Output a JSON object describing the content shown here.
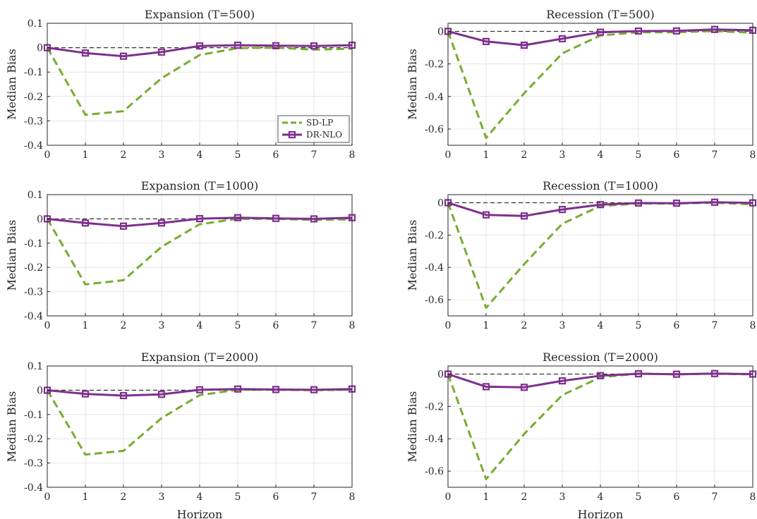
{
  "figure": {
    "xlabel": "Horizon",
    "ylabel": "Median Bias",
    "colors": {
      "sdlp": "#77AC30",
      "drnlo": "#7E2F8E",
      "zero": "#333333",
      "grid": "#e6e6e6",
      "axis": "#262626"
    }
  },
  "legend": {
    "location": "south-east (top-left panel)",
    "entries": [
      "SD-LP",
      "DR-NLO"
    ]
  },
  "chart_data": [
    {
      "type": "line",
      "title": "Expansion (T=500)",
      "xlabel": "",
      "ylabel": "Median Bias",
      "x": [
        0,
        1,
        2,
        3,
        4,
        5,
        6,
        7,
        8
      ],
      "xlim": [
        0,
        8
      ],
      "ylim": [
        -0.4,
        0.1
      ],
      "yticks": [
        -0.4,
        -0.3,
        -0.2,
        -0.1,
        0,
        0.1
      ],
      "yticklabels": [
        "-0.4",
        "-0.3",
        "-0.2",
        "-0.1",
        "0",
        "0.1"
      ],
      "grid": true,
      "legend": "inside south-east",
      "series": [
        {
          "name": "SD-LP",
          "style": "dashed",
          "values": [
            0,
            -0.275,
            -0.26,
            -0.125,
            -0.03,
            -0.002,
            0.0,
            -0.008,
            -0.004
          ]
        },
        {
          "name": "DR-NLO",
          "style": "solid-square",
          "values": [
            0,
            -0.022,
            -0.035,
            -0.018,
            0.007,
            0.01,
            0.008,
            0.007,
            0.01
          ]
        }
      ]
    },
    {
      "type": "line",
      "title": "Recession (T=500)",
      "xlabel": "",
      "ylabel": "Median Bias",
      "x": [
        0,
        1,
        2,
        3,
        4,
        5,
        6,
        7,
        8
      ],
      "xlim": [
        0,
        8
      ],
      "ylim": [
        -0.7,
        0.05
      ],
      "yticks": [
        -0.6,
        -0.4,
        -0.2,
        0
      ],
      "yticklabels": [
        "-0.6",
        "-0.4",
        "-0.2",
        "0"
      ],
      "grid": true,
      "series": [
        {
          "name": "SD-LP",
          "style": "dashed",
          "values": [
            0,
            -0.655,
            -0.38,
            -0.135,
            -0.025,
            -0.005,
            -0.005,
            0.002,
            -0.008
          ]
        },
        {
          "name": "DR-NLO",
          "style": "solid-square",
          "values": [
            0,
            -0.062,
            -0.085,
            -0.045,
            -0.005,
            0.002,
            0.003,
            0.012,
            0.007
          ]
        }
      ]
    },
    {
      "type": "line",
      "title": "Expansion (T=1000)",
      "xlabel": "",
      "ylabel": "Median Bias",
      "x": [
        0,
        1,
        2,
        3,
        4,
        5,
        6,
        7,
        8
      ],
      "xlim": [
        0,
        8
      ],
      "ylim": [
        -0.4,
        0.1
      ],
      "yticks": [
        -0.4,
        -0.3,
        -0.2,
        -0.1,
        0,
        0.1
      ],
      "yticklabels": [
        "-0.4",
        "-0.3",
        "-0.2",
        "-0.1",
        "0",
        "0.1"
      ],
      "grid": true,
      "series": [
        {
          "name": "SD-LP",
          "style": "dashed",
          "values": [
            0,
            -0.27,
            -0.253,
            -0.115,
            -0.022,
            0.0,
            0.0,
            -0.004,
            -0.002
          ]
        },
        {
          "name": "DR-NLO",
          "style": "solid-square",
          "values": [
            0,
            -0.017,
            -0.03,
            -0.017,
            0.001,
            0.005,
            0.002,
            0.0,
            0.005
          ]
        }
      ]
    },
    {
      "type": "line",
      "title": "Recession (T=1000)",
      "xlabel": "",
      "ylabel": "Median Bias",
      "x": [
        0,
        1,
        2,
        3,
        4,
        5,
        6,
        7,
        8
      ],
      "xlim": [
        0,
        8
      ],
      "ylim": [
        -0.7,
        0.05
      ],
      "yticks": [
        -0.6,
        -0.4,
        -0.2,
        0
      ],
      "yticklabels": [
        "-0.6",
        "-0.4",
        "-0.2",
        "0"
      ],
      "grid": true,
      "series": [
        {
          "name": "SD-LP",
          "style": "dashed",
          "values": [
            0,
            -0.65,
            -0.38,
            -0.13,
            -0.02,
            -0.005,
            -0.005,
            0.0,
            -0.01
          ]
        },
        {
          "name": "DR-NLO",
          "style": "solid-square",
          "values": [
            0,
            -0.075,
            -0.082,
            -0.042,
            -0.012,
            -0.002,
            -0.003,
            0.003,
            -0.001
          ]
        }
      ]
    },
    {
      "type": "line",
      "title": "Expansion (T=2000)",
      "xlabel": "Horizon",
      "ylabel": "Median Bias",
      "x": [
        0,
        1,
        2,
        3,
        4,
        5,
        6,
        7,
        8
      ],
      "xlim": [
        0,
        8
      ],
      "ylim": [
        -0.4,
        0.1
      ],
      "yticks": [
        -0.4,
        -0.3,
        -0.2,
        -0.1,
        0,
        0.1
      ],
      "yticklabels": [
        "-0.4",
        "-0.3",
        "-0.2",
        "-0.1",
        "0",
        "0.1"
      ],
      "grid": true,
      "series": [
        {
          "name": "SD-LP",
          "style": "dashed",
          "values": [
            0,
            -0.265,
            -0.25,
            -0.115,
            -0.02,
            0.002,
            0.002,
            0.0,
            0.002
          ]
        },
        {
          "name": "DR-NLO",
          "style": "solid-square",
          "values": [
            0,
            -0.015,
            -0.022,
            -0.017,
            0.002,
            0.005,
            0.003,
            0.002,
            0.005
          ]
        }
      ]
    },
    {
      "type": "line",
      "title": "Recession (T=2000)",
      "xlabel": "Horizon",
      "ylabel": "Median Bias",
      "x": [
        0,
        1,
        2,
        3,
        4,
        5,
        6,
        7,
        8
      ],
      "xlim": [
        0,
        8
      ],
      "ylim": [
        -0.7,
        0.05
      ],
      "yticks": [
        -0.6,
        -0.4,
        -0.2,
        0
      ],
      "yticklabels": [
        "-0.6",
        "-0.4",
        "-0.2",
        "0"
      ],
      "grid": true,
      "series": [
        {
          "name": "SD-LP",
          "style": "dashed",
          "values": [
            0,
            -0.65,
            -0.37,
            -0.13,
            -0.02,
            0.003,
            -0.002,
            0.002,
            -0.002
          ]
        },
        {
          "name": "DR-NLO",
          "style": "solid-square",
          "values": [
            0,
            -0.078,
            -0.082,
            -0.042,
            -0.01,
            0.002,
            -0.001,
            0.003,
            0.0
          ]
        }
      ]
    }
  ]
}
